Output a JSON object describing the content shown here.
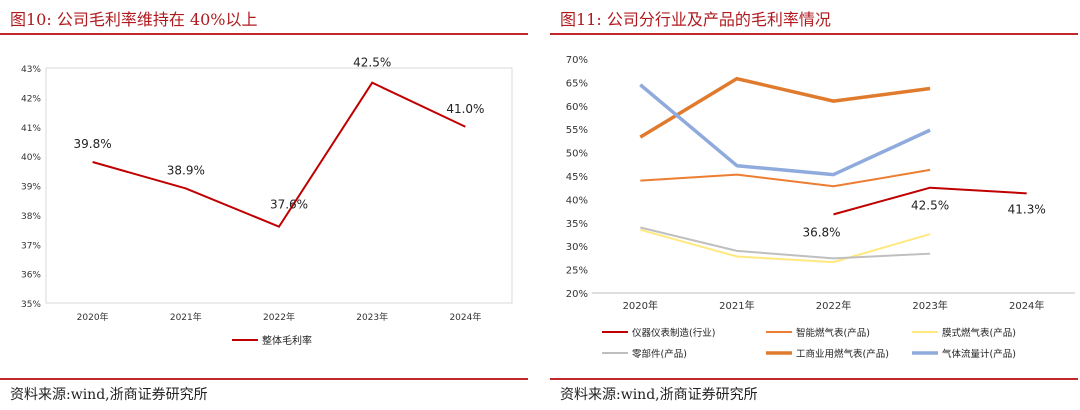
{
  "left": {
    "title": "图10:  公司毛利率维持在 40%以上",
    "source": "资料来源:wind,浙商证券研究所"
  },
  "right": {
    "title": "图11:  公司分行业及产品的毛利率情况",
    "source": "资料来源:wind,浙商证券研究所"
  },
  "chart_data": [
    {
      "type": "line",
      "title": "公司毛利率维持在 40%以上",
      "categories": [
        "2020年",
        "2021年",
        "2022年",
        "2023年",
        "2024年"
      ],
      "ylim": [
        35,
        43
      ],
      "yticks": [
        "35%",
        "36%",
        "37%",
        "38%",
        "39%",
        "40%",
        "41%",
        "42%",
        "43%"
      ],
      "series": [
        {
          "name": "整体毛利率",
          "color": "#c00000",
          "values": [
            39.8,
            38.9,
            37.6,
            42.5,
            41.0
          ]
        }
      ],
      "data_labels": [
        "39.8%",
        "38.9%",
        "37.6%",
        "42.5%",
        "41.0%"
      ],
      "legend": "bottom"
    },
    {
      "type": "line",
      "title": "公司分行业及产品的毛利率情况",
      "categories": [
        "2020年",
        "2021年",
        "2022年",
        "2023年",
        "2024年"
      ],
      "ylim": [
        20,
        70
      ],
      "yticks": [
        "20%",
        "25%",
        "30%",
        "35%",
        "40%",
        "45%",
        "50%",
        "55%",
        "60%",
        "65%",
        "70%"
      ],
      "series": [
        {
          "name": "仪器仪表制造(行业)",
          "color": "#c00000",
          "bold": false,
          "values": [
            null,
            null,
            36.8,
            42.5,
            41.3
          ]
        },
        {
          "name": "智能燃气表(产品)",
          "color": "#ed7d31",
          "bold": false,
          "values": [
            44.0,
            45.3,
            42.8,
            46.3,
            null
          ]
        },
        {
          "name": "膜式燃气表(产品)",
          "color": "#ffe97f",
          "bold": false,
          "values": [
            33.5,
            27.8,
            26.6,
            32.6,
            null
          ]
        },
        {
          "name": "零部件(产品)",
          "color": "#bfbfbf",
          "bold": false,
          "values": [
            34.0,
            29.0,
            27.4,
            28.4,
            null
          ]
        },
        {
          "name": "工商业用燃气表(产品)",
          "color": "#e07b2e",
          "bold": true,
          "values": [
            53.3,
            65.8,
            61.0,
            63.7,
            null
          ]
        },
        {
          "name": "气体流量计(产品)",
          "color": "#8faadc",
          "bold": true,
          "values": [
            64.5,
            47.2,
            45.3,
            54.8,
            null
          ]
        }
      ],
      "annotations": [
        "36.8%",
        "42.5%",
        "41.3%"
      ],
      "legend": "bottom"
    }
  ]
}
